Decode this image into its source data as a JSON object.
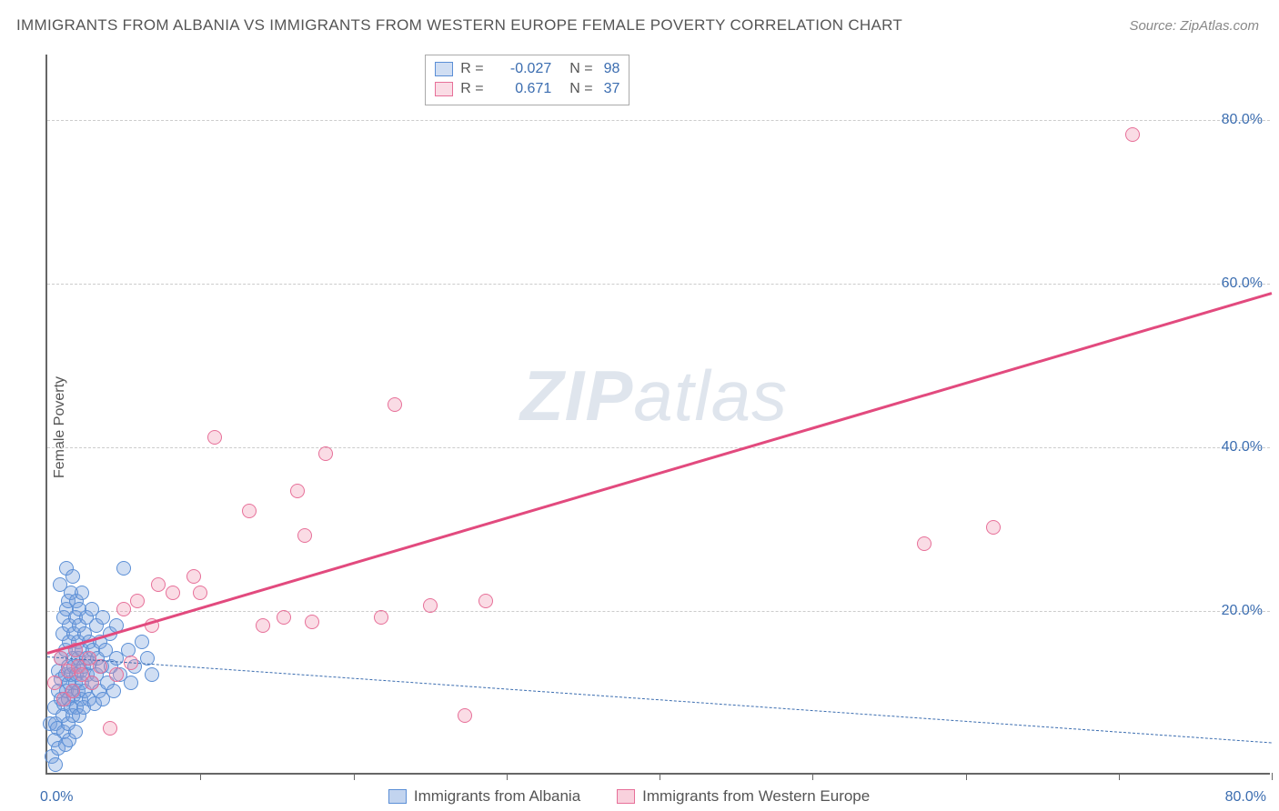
{
  "title": "IMMIGRANTS FROM ALBANIA VS IMMIGRANTS FROM WESTERN EUROPE FEMALE POVERTY CORRELATION CHART",
  "source": "Source: ZipAtlas.com",
  "ylabel": "Female Poverty",
  "watermark_a": "ZIP",
  "watermark_b": "atlas",
  "chart": {
    "type": "scatter",
    "xlim": [
      0,
      88
    ],
    "ylim": [
      0,
      88
    ],
    "xtick_min_label": "0.0%",
    "xtick_max_label": "80.0%",
    "yticks": [
      20,
      40,
      60,
      80
    ],
    "ytick_labels": [
      "20.0%",
      "40.0%",
      "60.0%",
      "80.0%"
    ],
    "x_minor_ticks": [
      11,
      22,
      33,
      44,
      55,
      66,
      77,
      88
    ],
    "background_color": "#ffffff",
    "grid_color": "#cccccc",
    "axis_color": "#666666",
    "marker_radius": 8,
    "marker_stroke_width": 1.2,
    "series": [
      {
        "name": "Immigrants from Albania",
        "fill": "rgba(120,160,220,0.35)",
        "stroke": "#5b8fd6",
        "R": "-0.027",
        "N": "98",
        "trend": {
          "x1": 0,
          "y1": 14.5,
          "x2": 88,
          "y2": 4.0,
          "color": "#3b6db0",
          "dash": true,
          "width": 1.6
        },
        "points": [
          [
            0.2,
            6
          ],
          [
            0.3,
            2
          ],
          [
            0.5,
            4
          ],
          [
            0.5,
            8
          ],
          [
            0.6,
            1
          ],
          [
            0.6,
            6
          ],
          [
            0.7,
            5.5
          ],
          [
            0.8,
            3
          ],
          [
            0.8,
            10
          ],
          [
            0.8,
            12.5
          ],
          [
            0.9,
            23
          ],
          [
            1.0,
            14
          ],
          [
            1.0,
            9
          ],
          [
            1.0,
            11.5
          ],
          [
            1.1,
            7
          ],
          [
            1.1,
            17
          ],
          [
            1.2,
            19
          ],
          [
            1.2,
            8.5
          ],
          [
            1.2,
            5
          ],
          [
            1.3,
            12
          ],
          [
            1.3,
            3.5
          ],
          [
            1.3,
            15
          ],
          [
            1.4,
            25
          ],
          [
            1.4,
            10
          ],
          [
            1.4,
            20
          ],
          [
            1.5,
            6
          ],
          [
            1.5,
            9
          ],
          [
            1.5,
            13
          ],
          [
            1.5,
            21
          ],
          [
            1.6,
            4
          ],
          [
            1.6,
            16
          ],
          [
            1.6,
            11
          ],
          [
            1.6,
            18
          ],
          [
            1.7,
            8
          ],
          [
            1.7,
            12
          ],
          [
            1.7,
            22
          ],
          [
            1.8,
            14
          ],
          [
            1.8,
            7
          ],
          [
            1.8,
            10
          ],
          [
            1.8,
            24
          ],
          [
            1.9,
            17
          ],
          [
            1.9,
            9.5
          ],
          [
            1.9,
            13
          ],
          [
            2.0,
            19
          ],
          [
            2.0,
            11
          ],
          [
            2.0,
            15
          ],
          [
            2.0,
            5
          ],
          [
            2.1,
            8
          ],
          [
            2.1,
            21
          ],
          [
            2.1,
            12
          ],
          [
            2.2,
            16
          ],
          [
            2.2,
            10
          ],
          [
            2.2,
            14
          ],
          [
            2.3,
            18
          ],
          [
            2.3,
            7
          ],
          [
            2.3,
            20
          ],
          [
            2.4,
            12.5
          ],
          [
            2.4,
            9
          ],
          [
            2.5,
            15
          ],
          [
            2.5,
            11
          ],
          [
            2.5,
            22
          ],
          [
            2.6,
            13
          ],
          [
            2.6,
            8
          ],
          [
            2.7,
            17
          ],
          [
            2.7,
            10
          ],
          [
            2.8,
            14
          ],
          [
            2.8,
            19
          ],
          [
            2.9,
            12
          ],
          [
            3.0,
            16
          ],
          [
            3.0,
            9
          ],
          [
            3.1,
            13.5
          ],
          [
            3.2,
            20
          ],
          [
            3.2,
            11
          ],
          [
            3.3,
            15
          ],
          [
            3.4,
            8.5
          ],
          [
            3.5,
            18
          ],
          [
            3.5,
            12
          ],
          [
            3.6,
            14
          ],
          [
            3.7,
            10
          ],
          [
            3.8,
            16
          ],
          [
            3.9,
            13
          ],
          [
            4.0,
            9
          ],
          [
            4.0,
            19
          ],
          [
            4.2,
            15
          ],
          [
            4.3,
            11
          ],
          [
            4.5,
            17
          ],
          [
            4.6,
            13
          ],
          [
            4.8,
            10
          ],
          [
            5.0,
            14
          ],
          [
            5.0,
            18
          ],
          [
            5.2,
            12
          ],
          [
            5.5,
            25
          ],
          [
            5.8,
            15
          ],
          [
            6.0,
            11
          ],
          [
            6.3,
            13
          ],
          [
            6.8,
            16
          ],
          [
            7.2,
            14
          ],
          [
            7.5,
            12
          ]
        ]
      },
      {
        "name": "Immigrants from Western Europe",
        "fill": "rgba(240,140,170,0.30)",
        "stroke": "#e77099",
        "R": "0.671",
        "N": "37",
        "trend": {
          "x1": 0,
          "y1": 15.0,
          "x2": 88,
          "y2": 59.0,
          "color": "#e24a7e",
          "dash": false,
          "width": 3
        },
        "points": [
          [
            0.5,
            11
          ],
          [
            1.0,
            14
          ],
          [
            1.2,
            9
          ],
          [
            1.5,
            12.5
          ],
          [
            1.8,
            10
          ],
          [
            2.0,
            15
          ],
          [
            2.2,
            13
          ],
          [
            2.5,
            12
          ],
          [
            3.0,
            14
          ],
          [
            3.2,
            11
          ],
          [
            3.8,
            13
          ],
          [
            4.5,
            5.5
          ],
          [
            5.0,
            12
          ],
          [
            5.5,
            20
          ],
          [
            6.0,
            13.5
          ],
          [
            6.5,
            21
          ],
          [
            7.5,
            18
          ],
          [
            8.0,
            23
          ],
          [
            9.0,
            22
          ],
          [
            10.5,
            24
          ],
          [
            11.0,
            22
          ],
          [
            12.0,
            41
          ],
          [
            14.5,
            32
          ],
          [
            15.5,
            18
          ],
          [
            17.0,
            19
          ],
          [
            18.0,
            34.5
          ],
          [
            18.5,
            29
          ],
          [
            19.0,
            18.5
          ],
          [
            20.0,
            39
          ],
          [
            24.0,
            19
          ],
          [
            25.0,
            45
          ],
          [
            27.5,
            20.5
          ],
          [
            30.0,
            7
          ],
          [
            31.5,
            21
          ],
          [
            63.0,
            28
          ],
          [
            68.0,
            30
          ],
          [
            78.0,
            78
          ]
        ]
      }
    ]
  },
  "legend_bottom": {
    "items": [
      {
        "label": "Immigrants from Albania",
        "fill": "rgba(120,160,220,0.45)",
        "stroke": "#5b8fd6"
      },
      {
        "label": "Immigrants from Western Europe",
        "fill": "rgba(240,140,170,0.40)",
        "stroke": "#e77099"
      }
    ]
  }
}
